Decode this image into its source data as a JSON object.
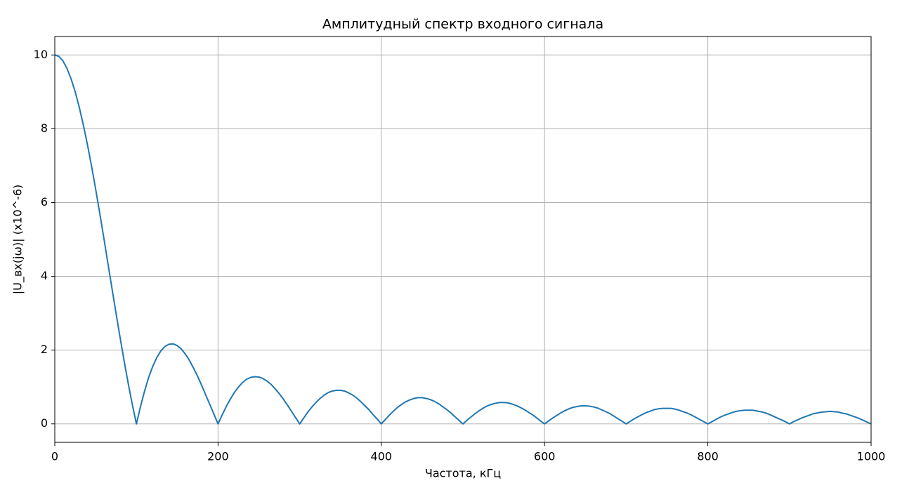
{
  "chart_data": {
    "type": "line",
    "title": "Амплитудный спектр входного сигнала",
    "x_label": "Частота, кГц",
    "y_label": "|U_вх(jω)| (x10^-6)",
    "x": [
      0,
      5,
      10,
      15,
      20,
      25,
      30,
      35,
      40,
      45,
      50,
      55,
      60,
      65,
      70,
      75,
      80,
      85,
      90,
      95,
      100,
      105,
      110,
      115,
      120,
      125,
      130,
      135,
      140,
      145,
      150,
      155,
      160,
      165,
      170,
      175,
      180,
      185,
      190,
      195,
      200,
      205,
      210,
      215,
      220,
      225,
      230,
      235,
      240,
      245,
      250,
      255,
      260,
      265,
      270,
      275,
      280,
      285,
      290,
      295,
      300,
      305,
      310,
      315,
      320,
      325,
      330,
      335,
      340,
      345,
      350,
      355,
      360,
      365,
      370,
      375,
      380,
      385,
      390,
      395,
      400,
      405,
      410,
      415,
      420,
      425,
      430,
      435,
      440,
      445,
      450,
      455,
      460,
      465,
      470,
      475,
      480,
      485,
      490,
      495,
      500,
      505,
      510,
      515,
      520,
      525,
      530,
      535,
      540,
      545,
      550,
      555,
      560,
      565,
      570,
      575,
      580,
      585,
      590,
      595,
      600,
      605,
      610,
      615,
      620,
      625,
      630,
      635,
      640,
      645,
      650,
      655,
      660,
      665,
      670,
      675,
      680,
      685,
      690,
      695,
      700,
      705,
      710,
      715,
      720,
      725,
      730,
      735,
      740,
      745,
      750,
      755,
      760,
      765,
      770,
      775,
      780,
      785,
      790,
      795,
      800,
      805,
      810,
      815,
      820,
      825,
      830,
      835,
      840,
      845,
      850,
      855,
      860,
      865,
      870,
      875,
      880,
      885,
      890,
      895,
      900,
      905,
      910,
      915,
      920,
      925,
      930,
      935,
      940,
      945,
      950,
      955,
      960,
      965,
      970,
      975,
      980,
      985,
      990,
      995,
      1000
    ],
    "series": [
      {
        "name": "|U_вх(jω)|",
        "color": "#1f77b4",
        "values": [
          10,
          9.96,
          9.84,
          9.63,
          9.35,
          9.0,
          8.58,
          8.1,
          7.57,
          6.99,
          6.37,
          5.72,
          5.05,
          4.36,
          3.68,
          3.0,
          2.34,
          1.7,
          1.09,
          0.52,
          0,
          0.47,
          0.89,
          1.26,
          1.56,
          1.8,
          1.98,
          2.1,
          2.16,
          2.17,
          2.12,
          2.03,
          1.89,
          1.72,
          1.51,
          1.29,
          1.04,
          0.78,
          0.52,
          0.26,
          0,
          0.24,
          0.47,
          0.67,
          0.85,
          1.0,
          1.12,
          1.21,
          1.26,
          1.28,
          1.27,
          1.23,
          1.16,
          1.07,
          0.95,
          0.82,
          0.67,
          0.51,
          0.34,
          0.17,
          0,
          0.16,
          0.32,
          0.46,
          0.58,
          0.69,
          0.78,
          0.85,
          0.89,
          0.91,
          0.91,
          0.89,
          0.84,
          0.78,
          0.7,
          0.6,
          0.49,
          0.38,
          0.25,
          0.13,
          0,
          0.12,
          0.24,
          0.35,
          0.45,
          0.53,
          0.6,
          0.65,
          0.69,
          0.71,
          0.71,
          0.69,
          0.66,
          0.61,
          0.55,
          0.47,
          0.39,
          0.3,
          0.2,
          0.1,
          0,
          0.1,
          0.19,
          0.28,
          0.36,
          0.43,
          0.49,
          0.53,
          0.56,
          0.58,
          0.58,
          0.57,
          0.54,
          0.5,
          0.45,
          0.39,
          0.32,
          0.25,
          0.17,
          0.08,
          0,
          0.08,
          0.16,
          0.23,
          0.3,
          0.36,
          0.41,
          0.45,
          0.47,
          0.49,
          0.49,
          0.48,
          0.46,
          0.43,
          0.38,
          0.33,
          0.28,
          0.21,
          0.14,
          0.07,
          0,
          0.07,
          0.14,
          0.2,
          0.26,
          0.31,
          0.35,
          0.39,
          0.41,
          0.42,
          0.42,
          0.42,
          0.4,
          0.37,
          0.33,
          0.29,
          0.24,
          0.18,
          0.12,
          0.06,
          0,
          0.06,
          0.12,
          0.18,
          0.23,
          0.27,
          0.31,
          0.34,
          0.36,
          0.37,
          0.37,
          0.37,
          0.35,
          0.33,
          0.3,
          0.26,
          0.21,
          0.16,
          0.11,
          0.06,
          0,
          0.06,
          0.11,
          0.16,
          0.2,
          0.24,
          0.28,
          0.3,
          0.32,
          0.33,
          0.34,
          0.33,
          0.32,
          0.29,
          0.27,
          0.23,
          0.19,
          0.15,
          0.1,
          0.05,
          0
        ]
      }
    ],
    "xlim": [
      0,
      1000
    ],
    "xticks": [
      0,
      200,
      400,
      600,
      800,
      1000
    ],
    "ylim": [
      -0.5,
      10.5
    ],
    "yticks": [
      0,
      2,
      4,
      6,
      8,
      10
    ],
    "grid": true
  }
}
